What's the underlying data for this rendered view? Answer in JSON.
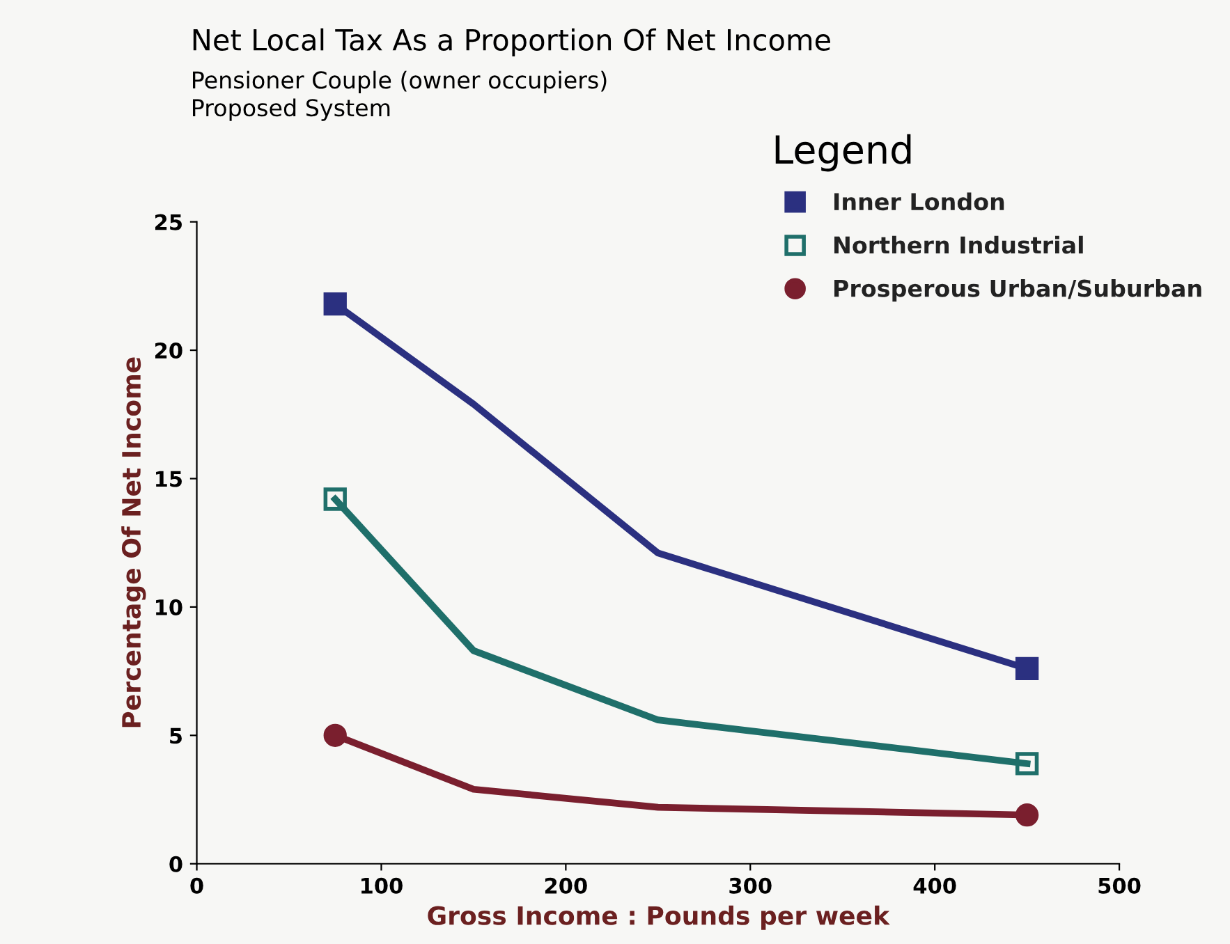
{
  "chart_data": {
    "type": "line",
    "title": "Net Local Tax As a Proportion Of Net Income",
    "subtitle": "Pensioner Couple (owner occupiers)\nProposed System",
    "xlabel": "Gross Income : Pounds per week",
    "ylabel": "Percentage Of Net Income",
    "legend_title": "Legend",
    "legend": "top right",
    "grid": false,
    "x": [
      75,
      150,
      250,
      450
    ],
    "series": [
      {
        "name": "Inner London",
        "color": "#2b3080",
        "values": [
          21.8,
          17.9,
          12.1,
          7.6
        ],
        "marker": "square"
      },
      {
        "name": "Northern Industrial",
        "color": "#1f6f6a",
        "values": [
          14.2,
          8.3,
          5.6,
          3.9
        ],
        "marker": "square"
      },
      {
        "name": "Prosperous Urban/Suburban",
        "color": "#7a1f2e",
        "values": [
          5.0,
          2.9,
          2.2,
          1.9
        ],
        "marker": "circle"
      }
    ],
    "xlim": [
      0,
      500
    ],
    "xticks": [
      0,
      100,
      200,
      300,
      400,
      500
    ],
    "ylim": [
      0,
      25
    ],
    "yticks": [
      0,
      5,
      10,
      15,
      20,
      25
    ]
  }
}
